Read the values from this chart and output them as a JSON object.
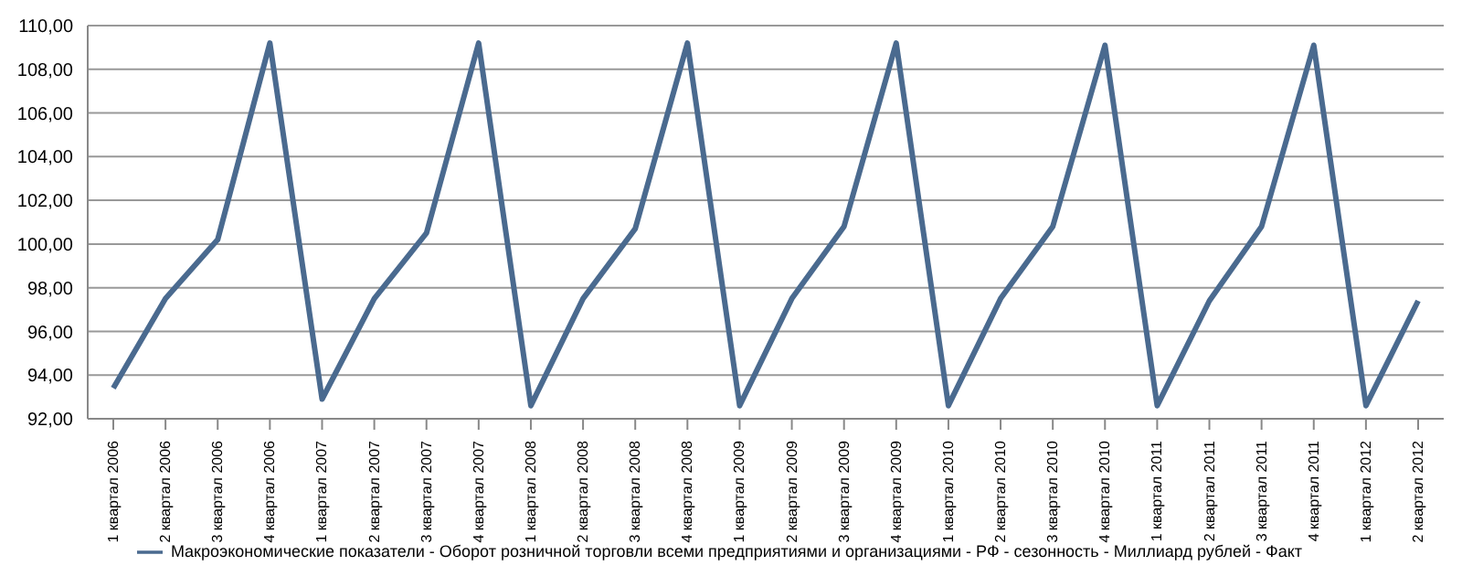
{
  "chart_data": {
    "type": "line",
    "categories": [
      "1 квартал 2006",
      "2 квартал 2006",
      "3 квартал 2006",
      "4 квартал 2006",
      "1 квартал 2007",
      "2 квартал 2007",
      "3 квартал 2007",
      "4 квартал 2007",
      "1 квартал 2008",
      "2 квартал 2008",
      "3 квартал 2008",
      "4 квартал 2008",
      "1 квартал 2009",
      "2 квартал 2009",
      "3 квартал 2009",
      "4 квартал 2009",
      "1 квартал 2010",
      "2 квартал 2010",
      "3 квартал 2010",
      "4 квартал 2010",
      "1 квартал 2011",
      "2 квартал 2011",
      "3 квартал 2011",
      "4 квартал 2011",
      "1 квартал 2012",
      "2 квартал 2012"
    ],
    "series": [
      {
        "name": "Макроэкономические показатели - Оборот розничной торговли всеми предприятиями и организациями - РФ - сезонность - Миллиард рублей - Факт",
        "color": "#4a6a8f",
        "values": [
          93.4,
          97.5,
          100.2,
          109.2,
          92.9,
          97.5,
          100.5,
          109.2,
          92.6,
          97.5,
          100.7,
          109.2,
          92.6,
          97.5,
          100.8,
          109.2,
          92.6,
          97.5,
          100.8,
          109.1,
          92.6,
          97.4,
          100.8,
          109.1,
          92.6,
          97.4
        ]
      }
    ],
    "ylim": [
      92,
      110
    ],
    "yticks": [
      {
        "value": 92,
        "label": "92,00"
      },
      {
        "value": 94,
        "label": "94,00"
      },
      {
        "value": 96,
        "label": "96,00"
      },
      {
        "value": 98,
        "label": "98,00"
      },
      {
        "value": 100,
        "label": "100,00"
      },
      {
        "value": 102,
        "label": "102,00"
      },
      {
        "value": 104,
        "label": "104,00"
      },
      {
        "value": 106,
        "label": "106,00"
      },
      {
        "value": 108,
        "label": "108,00"
      },
      {
        "value": 110,
        "label": "110,00"
      }
    ],
    "grid": "y",
    "legend": "bottom",
    "marker": "none",
    "line_style": "solid"
  }
}
